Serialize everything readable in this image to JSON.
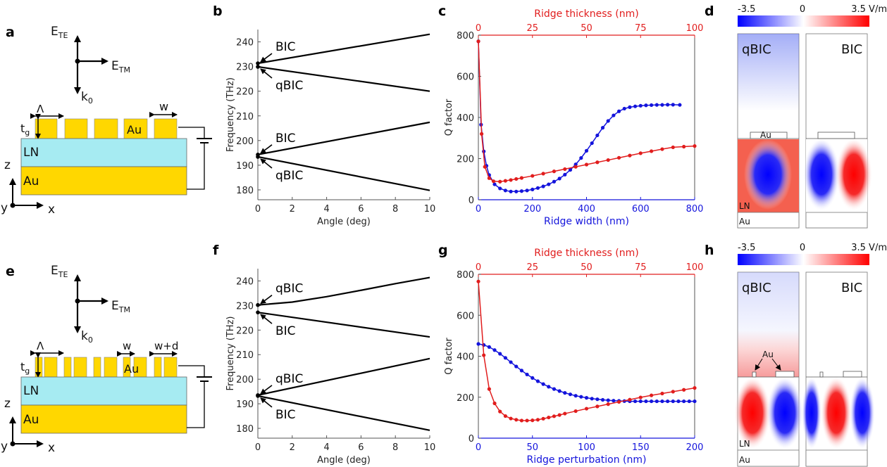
{
  "panels": {
    "a": "a",
    "b": "b",
    "c": "c",
    "d": "d",
    "e": "e",
    "f": "f",
    "g": "g",
    "h": "h"
  },
  "colors": {
    "gold": "#ffd700",
    "ln": "#a6ebf2",
    "blue": "#1414dc",
    "red": "#e11d1d",
    "black": "#000000"
  },
  "schematic_top": {
    "e_te": "E",
    "e_te_sub": "TE",
    "e_tm": "E",
    "e_tm_sub": "TM",
    "k": "k",
    "k_sub": "0",
    "period": "Λ",
    "tg": "t",
    "tg_sub": "g",
    "w": "w",
    "ridge_label": "Au",
    "ln": "LN",
    "au": "Au",
    "axis_z": "z",
    "axis_y": "y",
    "axis_x": "x"
  },
  "schematic_bottom": {
    "e_te": "E",
    "e_te_sub": "TE",
    "e_tm": "E",
    "e_tm_sub": "TM",
    "k": "k",
    "k_sub": "0",
    "period": "Λ",
    "tg": "t",
    "tg_sub": "g",
    "w": "w",
    "wd": "w+d",
    "ridge_label": "Au",
    "ln": "LN",
    "au": "Au",
    "axis_z": "z",
    "axis_y": "y",
    "axis_x": "x"
  },
  "field_maps": {
    "top": {
      "cb_min": "-3.5",
      "cb_mid": "0",
      "cb_max": "3.5 V/m",
      "left_label": "qBIC",
      "right_label": "BIC",
      "au_label": "Au",
      "ln_label": "LN",
      "au_sub_label": "Au"
    },
    "bottom": {
      "cb_min": "-3.5",
      "cb_mid": "0",
      "cb_max": "3.5 V/m",
      "left_label": "qBIC",
      "right_label": "BIC",
      "au_label": "Au",
      "ln_label": "LN",
      "au_sub_label": "Au"
    }
  },
  "chart_data": [
    {
      "panel": "b",
      "type": "line",
      "xlabel": "Angle (deg)",
      "ylabel": "Frequency (THz)",
      "xlim": [
        0,
        10
      ],
      "ylim": [
        176,
        245
      ],
      "xticks": [
        0,
        2,
        4,
        6,
        8,
        10
      ],
      "yticks": [
        180,
        190,
        200,
        210,
        220,
        230,
        240
      ],
      "series": [
        {
          "name": "upper-1",
          "x": [
            0,
            10
          ],
          "y": [
            231.3,
            243.1
          ]
        },
        {
          "name": "upper-2",
          "x": [
            0,
            10
          ],
          "y": [
            229.9,
            220.0
          ]
        },
        {
          "name": "lower-1",
          "x": [
            0,
            10
          ],
          "y": [
            194.3,
            207.4
          ]
        },
        {
          "name": "lower-2",
          "x": [
            0,
            10
          ],
          "y": [
            193.4,
            179.8
          ]
        }
      ],
      "annotations": [
        {
          "text": "BIC",
          "x": 0,
          "y": 231.3
        },
        {
          "text": "qBIC",
          "x": 0,
          "y": 229.9
        },
        {
          "text": "BIC",
          "x": 0,
          "y": 194.3
        },
        {
          "text": "qBIC",
          "x": 0,
          "y": 193.4
        }
      ]
    },
    {
      "panel": "c",
      "type": "scatter",
      "xlabel": "Ridge width (nm)",
      "x2label": "Ridge thickness (nm)",
      "ylabel": "Q factor",
      "xlim": [
        0,
        800
      ],
      "x2lim": [
        0,
        100
      ],
      "ylim": [
        0,
        800
      ],
      "xticks": [
        0,
        200,
        400,
        600,
        800
      ],
      "x2ticks": [
        0,
        25,
        50,
        75,
        100
      ],
      "yticks": [
        0,
        200,
        400,
        600,
        800
      ],
      "series": [
        {
          "name": "Ridge width",
          "axis": "bottom",
          "color": "blue",
          "x": [
            0,
            10,
            20,
            30,
            40,
            60,
            80,
            100,
            120,
            140,
            160,
            180,
            200,
            220,
            240,
            260,
            280,
            300,
            320,
            340,
            360,
            380,
            400,
            420,
            440,
            460,
            480,
            500,
            520,
            540,
            560,
            580,
            600,
            620,
            640,
            660,
            680,
            700,
            720,
            745
          ],
          "y": [
            770,
            365,
            235,
            165,
            120,
            75,
            55,
            45,
            40,
            40,
            42,
            45,
            50,
            57,
            65,
            75,
            88,
            103,
            122,
            145,
            172,
            203,
            238,
            275,
            313,
            350,
            383,
            410,
            430,
            443,
            450,
            454,
            457,
            459,
            460,
            461,
            461,
            462,
            462,
            461
          ]
        },
        {
          "name": "Ridge thickness",
          "axis": "top",
          "color": "red",
          "x": [
            0,
            1.5,
            3,
            5,
            7,
            10,
            12.5,
            15,
            17.5,
            20,
            25,
            30,
            35,
            40,
            45,
            50,
            55,
            60,
            65,
            70,
            75,
            80,
            85,
            90,
            95,
            100
          ],
          "y": [
            770,
            320,
            160,
            105,
            90,
            88,
            92,
            96,
            101,
            106,
            116,
            127,
            138,
            149,
            160,
            171,
            182,
            193,
            204,
            215,
            226,
            236,
            246,
            255,
            258,
            261
          ]
        }
      ]
    },
    {
      "panel": "f",
      "type": "line",
      "xlabel": "Angle (deg)",
      "ylabel": "Frequency (THz)",
      "xlim": [
        0,
        10
      ],
      "ylim": [
        176,
        245
      ],
      "xticks": [
        0,
        2,
        4,
        6,
        8,
        10
      ],
      "yticks": [
        180,
        190,
        200,
        210,
        220,
        230,
        240
      ],
      "series": [
        {
          "name": "upper-1",
          "x": [
            0,
            2,
            4,
            6,
            8,
            10
          ],
          "y": [
            230.2,
            231.4,
            233.6,
            236.2,
            238.9,
            241.4
          ]
        },
        {
          "name": "upper-2",
          "x": [
            0,
            10
          ],
          "y": [
            227.2,
            217.2
          ]
        },
        {
          "name": "lower-1",
          "x": [
            0,
            10
          ],
          "y": [
            193.5,
            208.4
          ]
        },
        {
          "name": "lower-2",
          "x": [
            0,
            10
          ],
          "y": [
            193.2,
            179.2
          ]
        }
      ],
      "annotations": [
        {
          "text": "qBIC",
          "x": 0,
          "y": 230.2
        },
        {
          "text": "BIC",
          "x": 0,
          "y": 227.2
        },
        {
          "text": "qBIC",
          "x": 0,
          "y": 193.5
        },
        {
          "text": "BIC",
          "x": 0,
          "y": 193.2
        }
      ]
    },
    {
      "panel": "g",
      "type": "scatter",
      "xlabel": "Ridge perturbation (nm)",
      "x2label": "Ridge thickness (nm)",
      "ylabel": "Q factor",
      "xlim": [
        0,
        200
      ],
      "x2lim": [
        0,
        100
      ],
      "ylim": [
        0,
        800
      ],
      "xticks": [
        0,
        50,
        100,
        150,
        200
      ],
      "x2ticks": [
        0,
        25,
        50,
        75,
        100
      ],
      "yticks": [
        0,
        200,
        400,
        600,
        800
      ],
      "series": [
        {
          "name": "Ridge perturbation",
          "axis": "bottom",
          "color": "blue",
          "x": [
            0,
            5,
            10,
            15,
            20,
            25,
            30,
            35,
            40,
            45,
            50,
            55,
            60,
            65,
            70,
            75,
            80,
            85,
            90,
            95,
            100,
            105,
            110,
            115,
            120,
            125,
            130,
            135,
            140,
            145,
            150,
            155,
            160,
            165,
            170,
            175,
            180,
            185,
            190,
            195,
            200
          ],
          "y": [
            460,
            455,
            445,
            430,
            412,
            392,
            371,
            350,
            330,
            311,
            294,
            278,
            264,
            251,
            240,
            230,
            221,
            214,
            207,
            202,
            197,
            193,
            190,
            187,
            185,
            183,
            182,
            181,
            180,
            180,
            180,
            180,
            180,
            180,
            180,
            180,
            180,
            180,
            180,
            180,
            180
          ]
        },
        {
          "name": "Ridge thickness",
          "axis": "top",
          "color": "red",
          "x": [
            0,
            2.5,
            5,
            7.5,
            10,
            12.5,
            15,
            17.5,
            20,
            22.5,
            25,
            27.5,
            30,
            32.5,
            35,
            37.5,
            40,
            45,
            50,
            55,
            60,
            65,
            70,
            75,
            80,
            85,
            90,
            95,
            100
          ],
          "y": [
            765,
            405,
            240,
            170,
            130,
            108,
            96,
            90,
            86,
            86,
            87,
            90,
            95,
            101,
            107,
            113,
            120,
            132,
            144,
            155,
            166,
            177,
            188,
            199,
            209,
            218,
            227,
            236,
            245
          ]
        }
      ]
    }
  ]
}
